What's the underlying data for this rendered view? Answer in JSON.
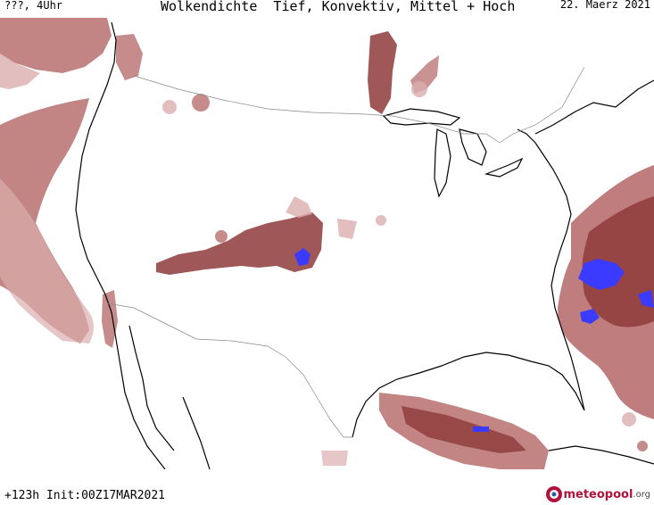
{
  "header": {
    "run_label": "???, 4Uhr",
    "title": "Wolkendichte  Tief, Konvektiv, Mittel + Hoch",
    "date": "22. Maerz 2021"
  },
  "footer": {
    "init_label": "+123h Init:00Z17MAR2021",
    "logo_main": "meteopool",
    "logo_suffix": ".org"
  },
  "map": {
    "colors": {
      "land": "#ffffff",
      "coast": "#000000",
      "border": "#888888",
      "cloud_light": "#dcaeae",
      "cloud_mid": "#b86f6f",
      "cloud_dense": "#8e3a3a",
      "convective": "#3b3bff"
    }
  }
}
